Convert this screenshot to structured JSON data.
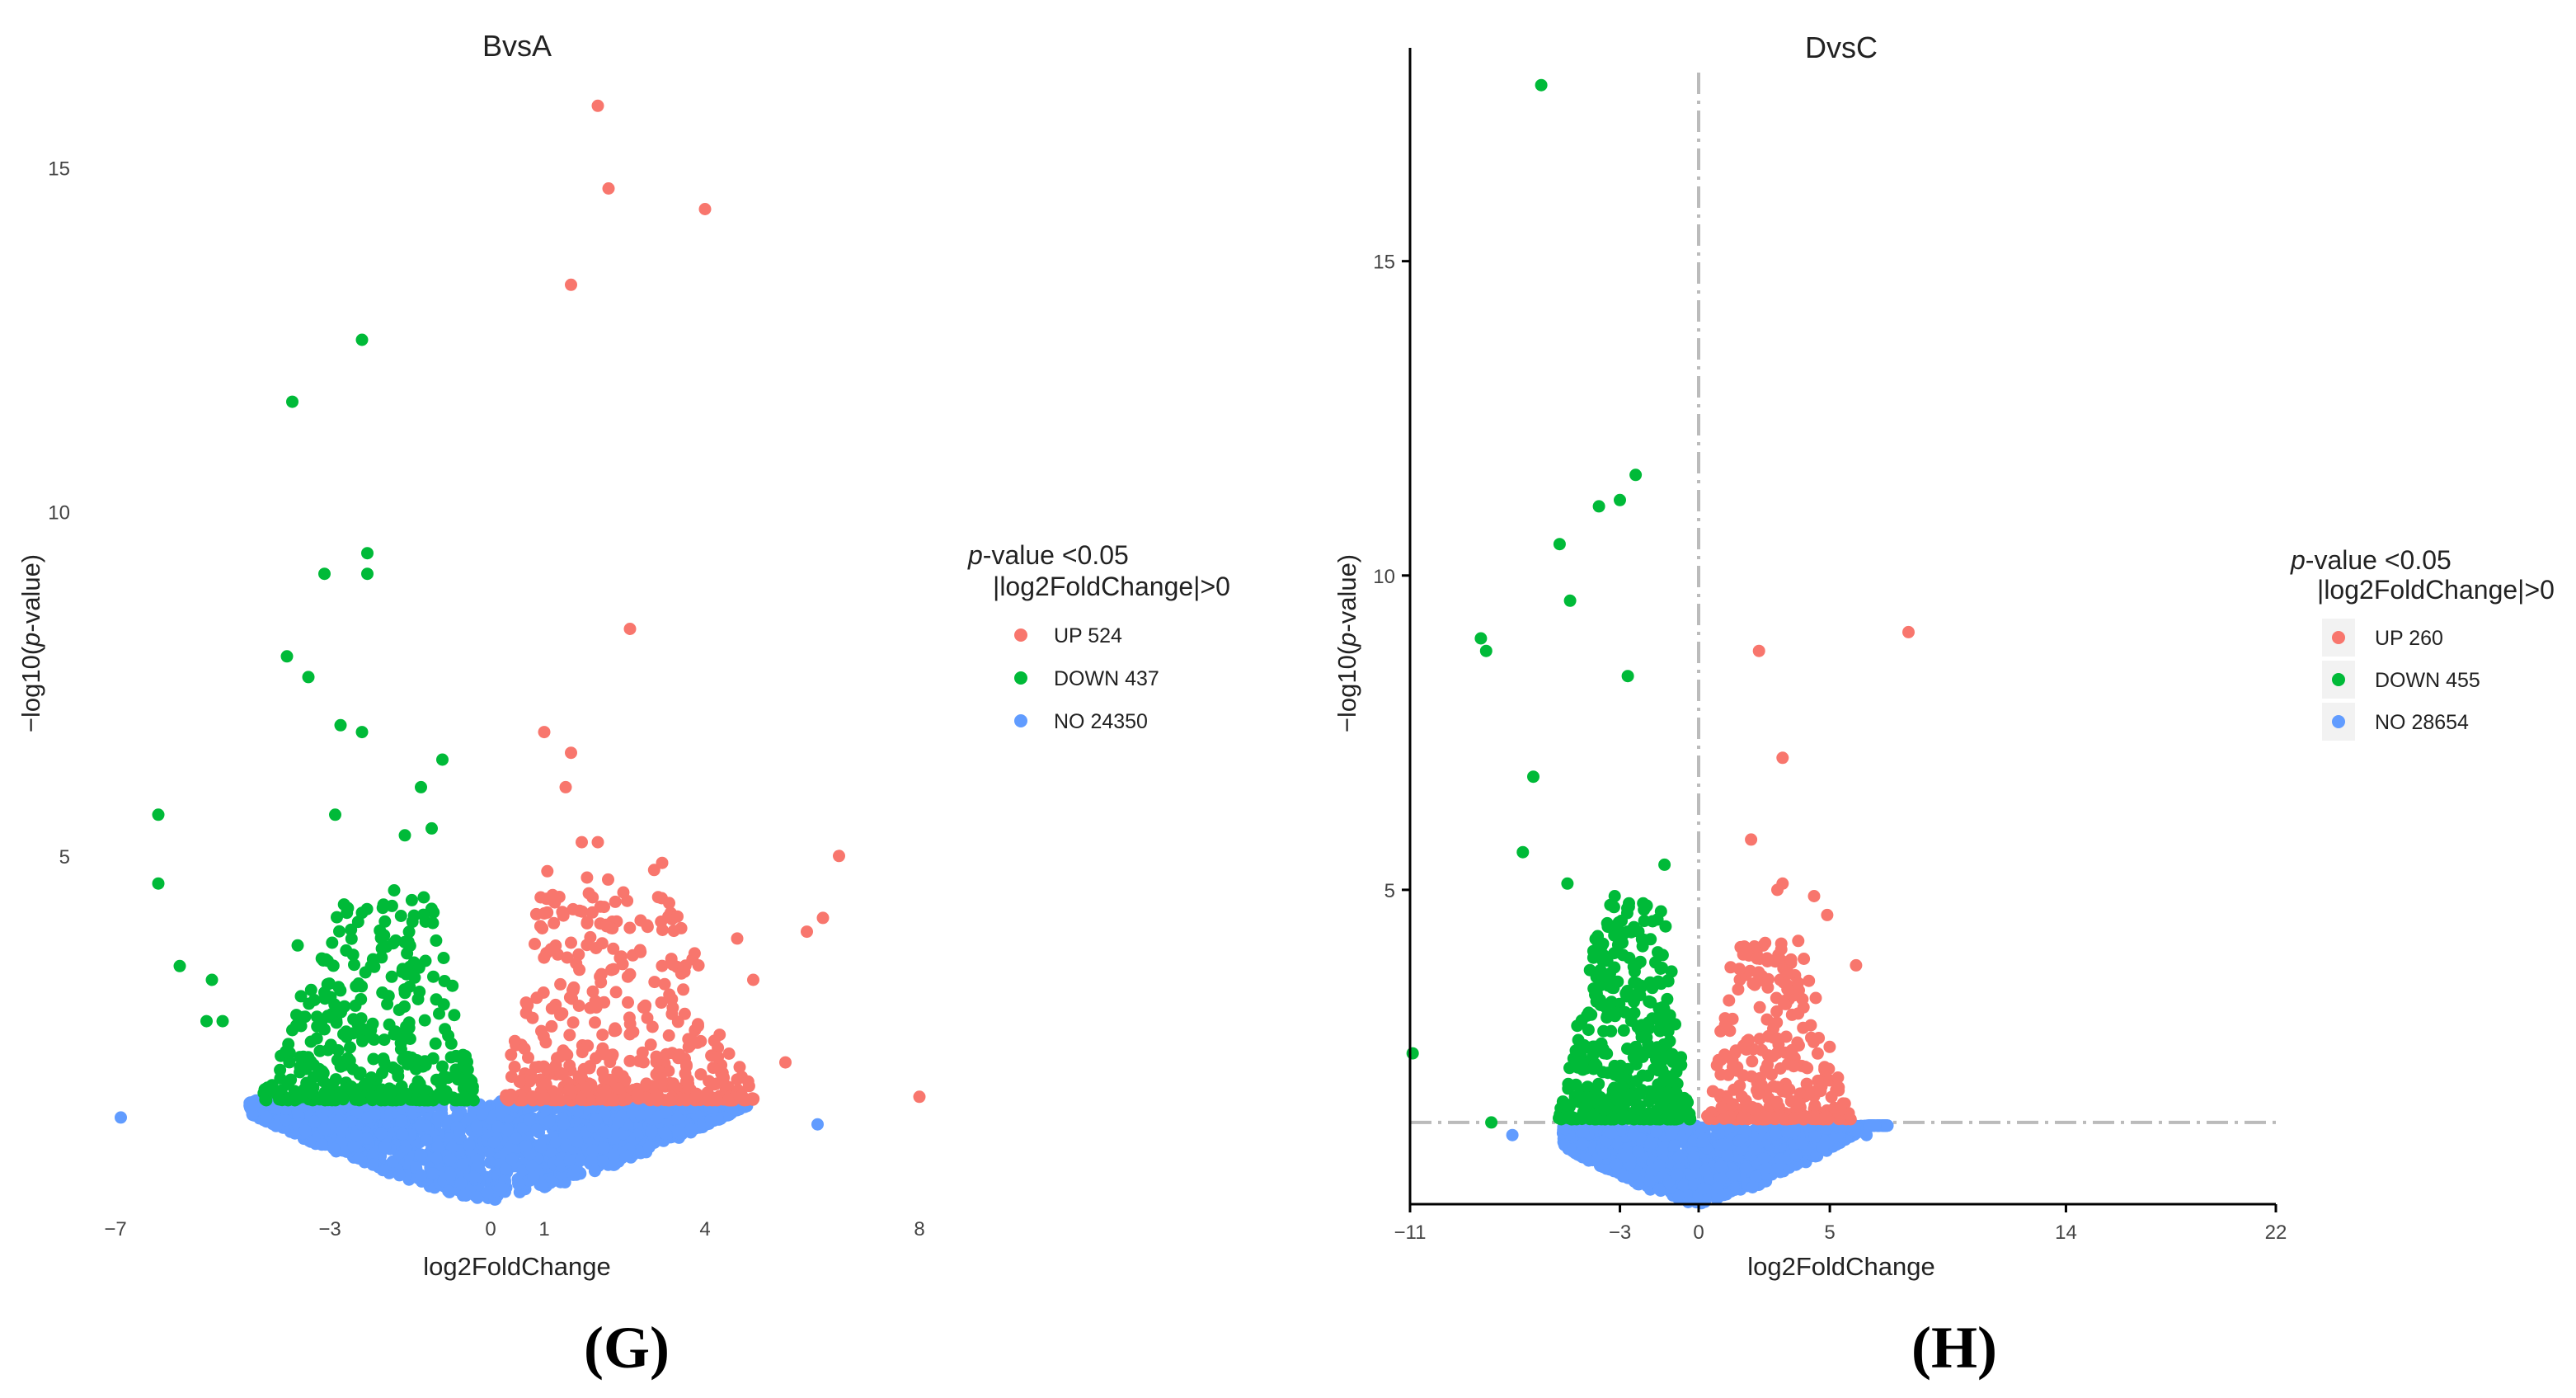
{
  "colors": {
    "up": "#F8766D",
    "down": "#00BA38",
    "no": "#619CFF",
    "guide": "#BBBBBB"
  },
  "panel_labels": [
    {
      "open": "(",
      "letter": "G",
      "close": ")"
    },
    {
      "open": "(",
      "letter": "H",
      "close": ")"
    }
  ],
  "chart_data": [
    {
      "type": "scatter",
      "title": "BvsA",
      "xlabel": "log2FoldChange",
      "ylabel": "-log10(p-value)",
      "ylabel_parts": {
        "pre": "−log10(",
        "italic": "p",
        "post": "-value)"
      },
      "xlim": [
        -7,
        8
      ],
      "ylim": [
        0,
        16
      ],
      "xticks": [
        -7,
        -3,
        0,
        1,
        4,
        8
      ],
      "yticks": [
        5,
        10,
        15
      ],
      "axes_lines": false,
      "threshold_lines": false,
      "legend": {
        "title_italic": "p",
        "title_rest": "-value <0.05",
        "subtitle": "|log2FoldChange|>0",
        "position": "right",
        "keyed_background": false,
        "entries": [
          {
            "label": "UP 524",
            "color_key": "up"
          },
          {
            "label": "DOWN 437",
            "color_key": "down"
          },
          {
            "label": "NO 24350",
            "color_key": "no"
          }
        ]
      },
      "counts": {
        "UP": 524,
        "DOWN": 437,
        "NO": 24350
      },
      "up_points": [
        [
          2.0,
          15.9
        ],
        [
          2.2,
          14.7
        ],
        [
          4.0,
          14.4
        ],
        [
          1.5,
          13.3
        ],
        [
          2.6,
          8.3
        ],
        [
          1.0,
          6.8
        ],
        [
          1.5,
          6.5
        ],
        [
          1.4,
          6.0
        ],
        [
          3.2,
          4.9
        ],
        [
          6.5,
          5.0
        ],
        [
          5.9,
          3.9
        ],
        [
          6.2,
          4.1
        ],
        [
          4.6,
          3.8
        ],
        [
          8.0,
          1.5
        ],
        [
          1.7,
          5.2
        ],
        [
          2.0,
          5.2
        ],
        [
          4.9,
          3.2
        ],
        [
          5.5,
          2.0
        ]
      ],
      "down_points": [
        [
          -2.4,
          12.5
        ],
        [
          -3.7,
          11.6
        ],
        [
          -2.3,
          9.4
        ],
        [
          -3.1,
          9.1
        ],
        [
          -2.3,
          9.1
        ],
        [
          -3.8,
          7.9
        ],
        [
          -3.4,
          7.6
        ],
        [
          -2.8,
          6.9
        ],
        [
          -2.4,
          6.8
        ],
        [
          -6.2,
          5.6
        ],
        [
          -6.2,
          4.6
        ],
        [
          -2.9,
          5.6
        ],
        [
          -0.9,
          6.4
        ],
        [
          -1.3,
          6.0
        ],
        [
          -5.8,
          3.4
        ],
        [
          -5.2,
          3.2
        ],
        [
          -3.6,
          3.7
        ],
        [
          -5.3,
          2.6
        ],
        [
          -5.0,
          2.6
        ],
        [
          -1.1,
          5.4
        ],
        [
          -1.6,
          5.3
        ],
        [
          -1.8,
          4.5
        ]
      ],
      "no_points": [
        [
          -6.9,
          1.2
        ],
        [
          6.1,
          1.1
        ]
      ],
      "clouds": [
        {
          "cls": "no",
          "n": 1800,
          "xmin": -4.5,
          "xmax": 4.8,
          "ymin": 0.0,
          "ymax": 1.45,
          "shape": "vfloor",
          "width": 5.0
        },
        {
          "cls": "down",
          "n": 380,
          "xmin": -4.3,
          "xmax": -0.25,
          "ymin": 1.45,
          "ymax": 4.4,
          "shape": "decay"
        },
        {
          "cls": "up",
          "n": 430,
          "xmin": 0.2,
          "xmax": 5.0,
          "ymin": 1.45,
          "ymax": 4.8,
          "shape": "decay"
        }
      ]
    },
    {
      "type": "scatter",
      "title": "DvsC",
      "xlabel": "log2FoldChange",
      "ylabel": "-log10(p-value)",
      "ylabel_parts": {
        "pre": "−log10(",
        "italic": "p",
        "post": "-value)"
      },
      "xlim": [
        -11,
        22
      ],
      "ylim": [
        0,
        18
      ],
      "xticks": [
        -11,
        -3,
        0,
        5,
        14,
        22
      ],
      "yticks": [
        5,
        10,
        15
      ],
      "axes_lines": true,
      "threshold_lines": true,
      "vline_x": 0,
      "hline_y": 1.3,
      "legend": {
        "title_italic": "p",
        "title_rest": "-value <0.05",
        "subtitle": "|log2FoldChange|>0",
        "position": "right",
        "keyed_background": true,
        "entries": [
          {
            "label": "UP 260",
            "color_key": "up"
          },
          {
            "label": "DOWN 455",
            "color_key": "down"
          },
          {
            "label": "NO 28654",
            "color_key": "no"
          }
        ]
      },
      "counts": {
        "UP": 260,
        "DOWN": 455,
        "NO": 28654
      },
      "up_points": [
        [
          8.0,
          9.1
        ],
        [
          2.3,
          8.8
        ],
        [
          3.2,
          7.1
        ],
        [
          2.0,
          5.8
        ],
        [
          3.2,
          5.1
        ],
        [
          4.4,
          4.9
        ],
        [
          4.9,
          4.6
        ],
        [
          6.0,
          3.8
        ],
        [
          3.0,
          5.0
        ]
      ],
      "down_points": [
        [
          -6.0,
          17.8
        ],
        [
          -2.4,
          11.6
        ],
        [
          -3.0,
          11.2
        ],
        [
          -3.8,
          11.1
        ],
        [
          -5.3,
          10.5
        ],
        [
          -8.3,
          9.0
        ],
        [
          -8.1,
          8.8
        ],
        [
          -4.9,
          9.6
        ],
        [
          -2.7,
          8.4
        ],
        [
          -6.3,
          6.8
        ],
        [
          -6.7,
          5.6
        ],
        [
          -10.9,
          2.4
        ],
        [
          -1.3,
          5.4
        ],
        [
          -7.9,
          1.3
        ],
        [
          -5.0,
          5.1
        ],
        [
          -3.2,
          4.9
        ]
      ],
      "no_points": [
        [
          -7.1,
          1.1
        ],
        [
          6.4,
          1.1
        ]
      ],
      "clouds": [
        {
          "cls": "no",
          "n": 1300,
          "xmin": -5.2,
          "xmax": 7.2,
          "ymin": 0.0,
          "ymax": 1.25,
          "shape": "vfloor",
          "width": 6.5
        },
        {
          "cls": "down",
          "n": 420,
          "xmin": -5.4,
          "xmax": -0.3,
          "ymin": 1.35,
          "ymax": 4.8,
          "shape": "decay"
        },
        {
          "cls": "up",
          "n": 300,
          "xmin": 0.3,
          "xmax": 5.8,
          "ymin": 1.35,
          "ymax": 4.2,
          "shape": "decay"
        }
      ]
    }
  ]
}
